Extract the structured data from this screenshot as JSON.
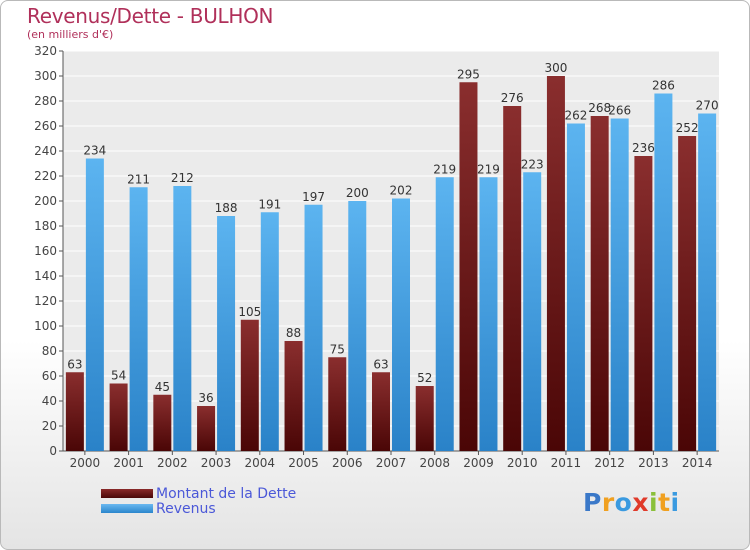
{
  "chart_data": {
    "type": "bar",
    "title": "Revenus/Dette - BULHON",
    "subtitle": "(en milliers d'€)",
    "categories": [
      "2000",
      "2001",
      "2002",
      "2003",
      "2004",
      "2005",
      "2006",
      "2007",
      "2008",
      "2009",
      "2010",
      "2011",
      "2012",
      "2013",
      "2014"
    ],
    "series": [
      {
        "name": "Montant de la Dette",
        "color": "#7a1f1f",
        "values": [
          63,
          54,
          45,
          36,
          105,
          88,
          75,
          63,
          52,
          295,
          276,
          300,
          268,
          236,
          252
        ]
      },
      {
        "name": "Revenus",
        "color": "#3a9ae0",
        "values": [
          234,
          211,
          212,
          188,
          191,
          197,
          200,
          202,
          219,
          219,
          223,
          262,
          266,
          286,
          270
        ]
      }
    ],
    "ylim": [
      0,
      320
    ],
    "ytick_step": 20,
    "grid": true,
    "legend_position": "bottom-left"
  },
  "logo": {
    "letters": [
      "P",
      "r",
      "o",
      "x",
      "i",
      "t",
      "i"
    ],
    "colors": [
      "#3a78c8",
      "#f0a020",
      "#3a9ae0",
      "#e03a2a",
      "#8ac03a",
      "#f0a020",
      "#3a9ae0"
    ]
  }
}
